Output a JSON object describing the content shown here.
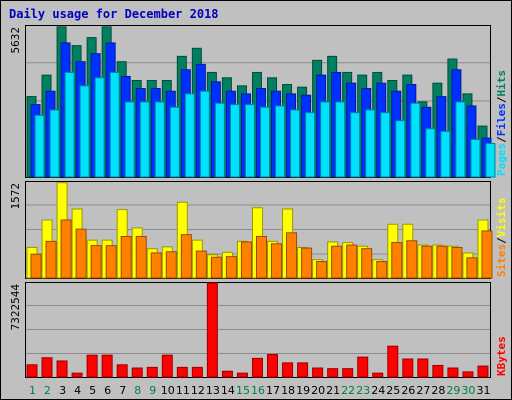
{
  "title": "Daily usage for December 2018",
  "chart_data": [
    {
      "type": "bar",
      "panel": "top",
      "ymax_label": "5632",
      "ylim": [
        0,
        5632
      ],
      "legend": [
        {
          "label": "Pages",
          "color": "#00e0ff"
        },
        {
          "label": "/",
          "color": "#000000"
        },
        {
          "label": "Files",
          "color": "#0030ff"
        },
        {
          "label": "/",
          "color": "#000000"
        },
        {
          "label": "Hits",
          "color": "#008060"
        }
      ],
      "x": [
        1,
        2,
        3,
        4,
        5,
        6,
        7,
        8,
        9,
        10,
        11,
        12,
        13,
        14,
        15,
        16,
        17,
        18,
        19,
        20,
        21,
        22,
        23,
        24,
        25,
        26,
        27,
        28,
        29,
        30,
        31
      ],
      "series": [
        {
          "name": "Hits",
          "color": "#008060",
          "values": [
            3000,
            3800,
            5600,
            4900,
            5200,
            5600,
            4300,
            3600,
            3600,
            3600,
            4500,
            4800,
            3900,
            3700,
            3400,
            3900,
            3700,
            3450,
            3350,
            4350,
            4500,
            3900,
            3800,
            3900,
            3600,
            3800,
            2800,
            3500,
            4400,
            3100,
            1900
          ]
        },
        {
          "name": "Files",
          "color": "#0030ff",
          "values": [
            2700,
            3200,
            5000,
            4300,
            4600,
            5000,
            3750,
            3300,
            3300,
            3200,
            4000,
            4200,
            3550,
            3200,
            3100,
            3300,
            3200,
            3100,
            3050,
            3800,
            3900,
            3500,
            3300,
            3500,
            3200,
            3450,
            2600,
            3000,
            4000,
            2650,
            1450
          ]
        },
        {
          "name": "Pages",
          "color": "#00e0ff",
          "values": [
            2300,
            2500,
            3900,
            3400,
            3700,
            3900,
            2800,
            2800,
            2800,
            2600,
            3100,
            3200,
            2750,
            2700,
            2700,
            2600,
            2650,
            2500,
            2400,
            2800,
            2800,
            2400,
            2500,
            2400,
            2100,
            2750,
            1800,
            1700,
            2800,
            1400,
            1250
          ]
        }
      ]
    },
    {
      "type": "bar",
      "panel": "middle",
      "ymax_label": "1572",
      "ylim": [
        0,
        1572
      ],
      "legend": [
        {
          "label": "Sites",
          "color": "#ff8000"
        },
        {
          "label": "/",
          "color": "#000000"
        },
        {
          "label": "Visits",
          "color": "#ffff00"
        }
      ],
      "x": [
        1,
        2,
        3,
        4,
        5,
        6,
        7,
        8,
        9,
        10,
        11,
        12,
        13,
        14,
        15,
        16,
        17,
        18,
        19,
        20,
        21,
        22,
        23,
        24,
        25,
        26,
        27,
        28,
        29,
        30,
        31
      ],
      "series": [
        {
          "name": "Visits",
          "color": "#ffff00",
          "values": [
            500,
            950,
            1560,
            1130,
            620,
            620,
            1120,
            820,
            480,
            510,
            1240,
            620,
            380,
            420,
            600,
            1150,
            600,
            1130,
            500,
            300,
            590,
            580,
            520,
            300,
            880,
            880,
            540,
            540,
            520,
            410,
            950
          ]
        },
        {
          "name": "Sites",
          "color": "#ff8000",
          "values": [
            390,
            600,
            950,
            800,
            530,
            530,
            680,
            680,
            410,
            430,
            710,
            440,
            340,
            350,
            590,
            680,
            560,
            740,
            490,
            270,
            520,
            540,
            480,
            270,
            580,
            610,
            520,
            520,
            500,
            330,
            770
          ]
        }
      ]
    },
    {
      "type": "bar",
      "panel": "bottom",
      "ymax_label": "7322544",
      "ylim": [
        0,
        7322544
      ],
      "legend": [
        {
          "label": "KBytes",
          "color": "#ff0000"
        }
      ],
      "x": [
        1,
        2,
        3,
        4,
        5,
        6,
        7,
        8,
        9,
        10,
        11,
        12,
        13,
        14,
        15,
        16,
        17,
        18,
        19,
        20,
        21,
        22,
        23,
        24,
        25,
        26,
        27,
        28,
        29,
        30,
        31
      ],
      "series": [
        {
          "name": "KBytes",
          "color": "#ff0000",
          "values": [
            950000,
            1500000,
            1250000,
            300000,
            1700000,
            1700000,
            950000,
            700000,
            750000,
            1700000,
            750000,
            750000,
            7322544,
            450000,
            300000,
            1450000,
            1750000,
            1100000,
            1100000,
            700000,
            650000,
            650000,
            1550000,
            300000,
            2400000,
            1400000,
            1400000,
            900000,
            700000,
            400000,
            850000
          ]
        }
      ]
    }
  ],
  "x_labels": [
    {
      "label": "1",
      "color": "#008040"
    },
    {
      "label": "2",
      "color": "#008040"
    },
    {
      "label": "3",
      "color": "#000000"
    },
    {
      "label": "4",
      "color": "#000000"
    },
    {
      "label": "5",
      "color": "#000000"
    },
    {
      "label": "6",
      "color": "#000000"
    },
    {
      "label": "7",
      "color": "#000000"
    },
    {
      "label": "8",
      "color": "#008040"
    },
    {
      "label": "9",
      "color": "#008040"
    },
    {
      "label": "10",
      "color": "#000000"
    },
    {
      "label": "11",
      "color": "#000000"
    },
    {
      "label": "12",
      "color": "#000000"
    },
    {
      "label": "13",
      "color": "#000000"
    },
    {
      "label": "14",
      "color": "#000000"
    },
    {
      "label": "15",
      "color": "#008040"
    },
    {
      "label": "16",
      "color": "#008040"
    },
    {
      "label": "17",
      "color": "#000000"
    },
    {
      "label": "18",
      "color": "#000000"
    },
    {
      "label": "19",
      "color": "#000000"
    },
    {
      "label": "20",
      "color": "#000000"
    },
    {
      "label": "21",
      "color": "#000000"
    },
    {
      "label": "22",
      "color": "#008040"
    },
    {
      "label": "23",
      "color": "#008040"
    },
    {
      "label": "24",
      "color": "#000000"
    },
    {
      "label": "25",
      "color": "#000000"
    },
    {
      "label": "26",
      "color": "#000000"
    },
    {
      "label": "27",
      "color": "#000000"
    },
    {
      "label": "28",
      "color": "#000000"
    },
    {
      "label": "29",
      "color": "#008040"
    },
    {
      "label": "30",
      "color": "#008040"
    },
    {
      "label": "31",
      "color": "#000000"
    }
  ]
}
